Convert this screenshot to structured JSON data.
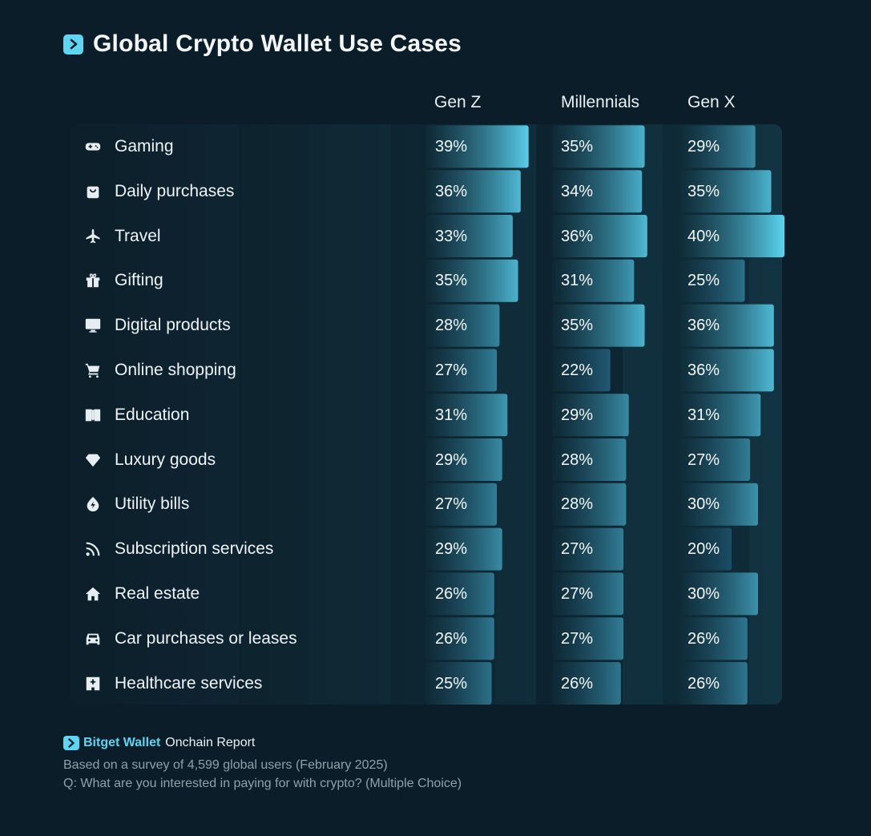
{
  "title": "Global Crypto Wallet Use Cases",
  "footer": {
    "brand": "Bitget Wallet",
    "brand_suffix": "Onchain Report",
    "note1": "Based on a survey of 4,599 global users (February 2025)",
    "note2": "Q: What are you interested in paying for with crypto? (Multiple Choice)"
  },
  "colors": {
    "background": "#0b1d28",
    "accent": "#5cd6f2"
  },
  "chart_data": {
    "type": "bar",
    "title": "Global Crypto Wallet Use Cases",
    "orientation": "horizontal",
    "categories": [
      "Gaming",
      "Daily purchases",
      "Travel",
      "Gifting",
      "Digital products",
      "Online shopping",
      "Education",
      "Luxury goods",
      "Utility bills",
      "Subscription services",
      "Real estate",
      "Car purchases or leases",
      "Healthcare services"
    ],
    "icons": [
      "gamepad-icon",
      "shopping-bag-icon",
      "airplane-icon",
      "gift-icon",
      "monitor-icon",
      "shopping-cart-icon",
      "book-icon",
      "diamond-icon",
      "energy-bolt-icon",
      "rss-feed-icon",
      "house-icon",
      "car-icon",
      "hospital-icon"
    ],
    "series": [
      {
        "name": "Gen Z",
        "values": [
          39,
          36,
          33,
          35,
          28,
          27,
          31,
          29,
          27,
          29,
          26,
          26,
          25
        ]
      },
      {
        "name": "Millennials",
        "values": [
          35,
          34,
          36,
          31,
          35,
          22,
          29,
          28,
          28,
          27,
          27,
          27,
          26
        ]
      },
      {
        "name": "Gen X",
        "values": [
          29,
          35,
          40,
          25,
          36,
          36,
          31,
          27,
          30,
          20,
          30,
          26,
          26
        ]
      }
    ],
    "value_suffix": "%"
  }
}
